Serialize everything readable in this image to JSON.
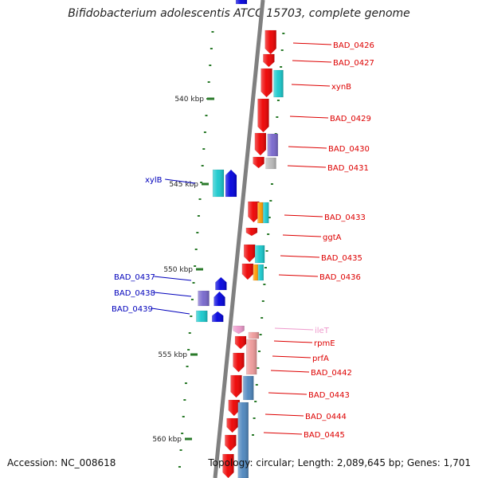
{
  "title": "Bifidobacterium adolescentis ATCC 15703, complete genome",
  "footer": {
    "accession": "Accession: NC_008618",
    "summary": "Topology: circular; Length: 2,089,645 bp; Genes: 1,701"
  },
  "colors": {
    "forward": "#ee0000",
    "reverse": "#0000dd",
    "cyan": "#17c8cc",
    "purple": "#7766cc",
    "orange": "#ff9900",
    "gray": "#b8b8b8",
    "pink": "#ee9999",
    "steel": "#4d86be",
    "trna": "#ee99cc",
    "ruler": "#2a7a2a",
    "backbone": "#808080"
  },
  "ruler_ticks": [
    "540 kbp",
    "545 kbp",
    "550 kbp",
    "555 kbp",
    "560 kbp"
  ],
  "gene_labels": [
    {
      "text": "BAD_0426",
      "strand": "forward"
    },
    {
      "text": "BAD_0427",
      "strand": "forward"
    },
    {
      "text": "xynB",
      "strand": "forward"
    },
    {
      "text": "BAD_0429",
      "strand": "forward"
    },
    {
      "text": "BAD_0430",
      "strand": "forward"
    },
    {
      "text": "BAD_0431",
      "strand": "forward"
    },
    {
      "text": "xylB",
      "strand": "reverse"
    },
    {
      "text": "BAD_0433",
      "strand": "forward"
    },
    {
      "text": "ggtA",
      "strand": "forward"
    },
    {
      "text": "BAD_0435",
      "strand": "forward"
    },
    {
      "text": "BAD_0436",
      "strand": "forward"
    },
    {
      "text": "BAD_0437",
      "strand": "reverse"
    },
    {
      "text": "BAD_0438",
      "strand": "reverse"
    },
    {
      "text": "BAD_0439",
      "strand": "reverse"
    },
    {
      "text": "ileT",
      "strand": "trna"
    },
    {
      "text": "rpmE",
      "strand": "forward"
    },
    {
      "text": "prfA",
      "strand": "forward"
    },
    {
      "text": "BAD_0442",
      "strand": "forward"
    },
    {
      "text": "BAD_0443",
      "strand": "forward"
    },
    {
      "text": "BAD_0444",
      "strand": "forward"
    },
    {
      "text": "BAD_0445",
      "strand": "forward"
    }
  ]
}
